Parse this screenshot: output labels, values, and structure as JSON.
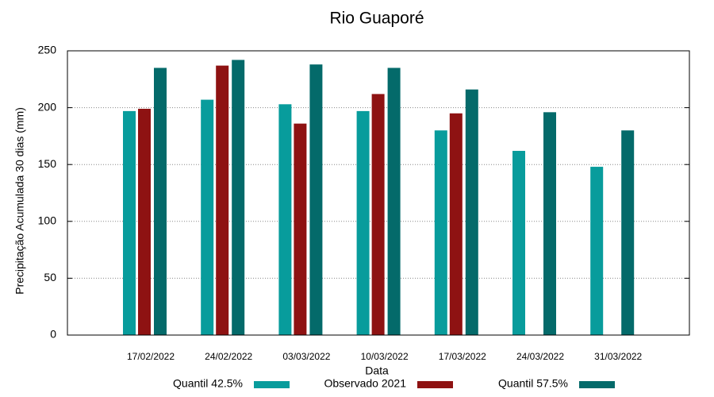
{
  "chart_data": {
    "type": "bar",
    "title": "Rio Guaporé",
    "x_label": "Data",
    "y_label": "Precipitação Acumulada 30 dias (mm)",
    "categories": [
      "17/02/2022",
      "24/02/2022",
      "03/03/2022",
      "10/03/2022",
      "17/03/2022",
      "24/03/2022",
      "31/03/2022"
    ],
    "series": [
      {
        "name": "Quantil 42.5%",
        "color": "#089c9c",
        "values": [
          197,
          207,
          203,
          197,
          180,
          162,
          148
        ]
      },
      {
        "name": "Observado 2021",
        "color": "#8e1212",
        "values": [
          199,
          237,
          186,
          212,
          195,
          null,
          null
        ]
      },
      {
        "name": "Quantil 57.5%",
        "color": "#046a6a",
        "values": [
          235,
          242,
          238,
          235,
          216,
          196,
          180
        ]
      }
    ],
    "ylim": [
      0,
      250
    ],
    "yticks": [
      0,
      50,
      100,
      150,
      200,
      250
    ],
    "grid": true
  }
}
